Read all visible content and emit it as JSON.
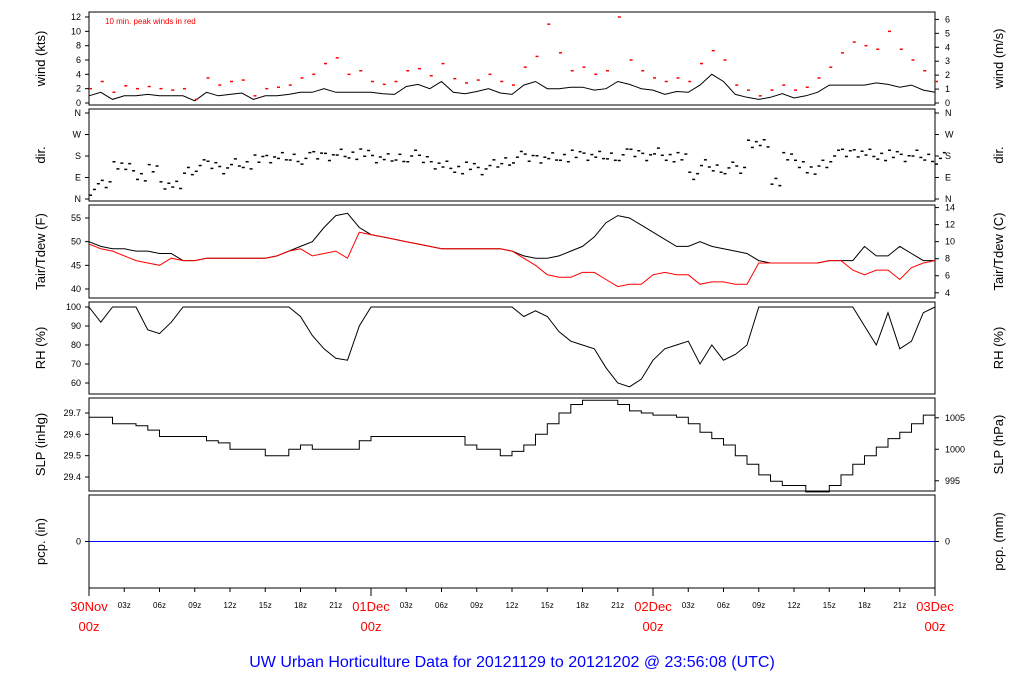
{
  "chart_data": {
    "type": "line",
    "title": "UW Urban Horticulture Data for 20121129  to  20121202 @ 23:56:08  (UTC)",
    "x_unit": "hours since 30Nov 00z",
    "x": [
      0,
      1,
      2,
      3,
      4,
      5,
      6,
      7,
      8,
      9,
      10,
      11,
      12,
      13,
      14,
      15,
      16,
      17,
      18,
      19,
      20,
      21,
      22,
      23,
      24,
      25,
      26,
      27,
      28,
      29,
      30,
      31,
      32,
      33,
      34,
      35,
      36,
      37,
      38,
      39,
      40,
      41,
      42,
      43,
      44,
      45,
      46,
      47,
      48,
      49,
      50,
      51,
      52,
      53,
      54,
      55,
      56,
      57,
      58,
      59,
      60,
      61,
      62,
      63,
      64,
      65,
      66,
      67,
      68,
      69,
      70,
      71,
      72
    ],
    "x_ticks_hours": [
      "03z",
      "06z",
      "09z",
      "12z",
      "15z",
      "18z",
      "21z"
    ],
    "x_day_labels": [
      {
        "day": "30Nov",
        "hour": "00z"
      },
      {
        "day": "01Dec",
        "hour": "00z"
      },
      {
        "day": "02Dec",
        "hour": "00z"
      },
      {
        "day": "03Dec",
        "hour": "00z"
      }
    ],
    "panels": [
      {
        "id": "wind",
        "ylabel": "wind (kts)",
        "ylabel_right": "wind (m/s)",
        "ylim": [
          0,
          12
        ],
        "yticks": [
          0,
          2,
          4,
          6,
          8,
          10,
          12
        ],
        "yticks_right": [
          0,
          1,
          2,
          3,
          4,
          5,
          6
        ],
        "annotation": "10 min. peak winds in red",
        "series": [
          {
            "name": "wind speed",
            "color": "#000000",
            "values": [
              1,
              1.5,
              0.5,
              1,
              1,
              1.2,
              1,
              1,
              1,
              0.3,
              1.5,
              1,
              1.2,
              1.4,
              0.5,
              1,
              1,
              1.2,
              1.5,
              1.5,
              2,
              1.5,
              1.5,
              1.5,
              1.5,
              1.3,
              1.2,
              2.3,
              2.6,
              2,
              3,
              1.5,
              1.3,
              1.6,
              2,
              1.4,
              1.2,
              2.5,
              3,
              2,
              2,
              2.2,
              2.2,
              1.8,
              2,
              3,
              2.6,
              2,
              1.8,
              1.2,
              1.6,
              1.5,
              2.5,
              4,
              3,
              1.2,
              0.8,
              0.5,
              0.8,
              1.3,
              0.7,
              1,
              1.5,
              2.5,
              2.5,
              2.5,
              2.5,
              2.8,
              2.6,
              2.2,
              2.5,
              1.8,
              1.5
            ]
          },
          {
            "name": "10 min. peak",
            "color": "#ff0000",
            "values": [
              2,
              3,
              1.5,
              2.4,
              2,
              2.3,
              2,
              1.8,
              2,
              0.5,
              3.5,
              2.5,
              3,
              3.2,
              1,
              2,
              2.2,
              2.5,
              3.5,
              4,
              5.5,
              6.3,
              4,
              4.5,
              3,
              2.6,
              3,
              4.5,
              4.8,
              3.8,
              5.5,
              3.4,
              2.8,
              3.2,
              4,
              3,
              2.5,
              5,
              6.5,
              11,
              7,
              4.5,
              5,
              4,
              4.5,
              12,
              6,
              4.5,
              3.5,
              3,
              3.5,
              3,
              5.5,
              7.3,
              6,
              2.5,
              1.8,
              1,
              1.8,
              2.5,
              1.8,
              2.2,
              3.5,
              5,
              7,
              8.5,
              8,
              7.5,
              10,
              7.5,
              6,
              4.5,
              3
            ]
          }
        ]
      },
      {
        "id": "dir",
        "ylabel": "dir.",
        "ylabel_right": "dir.",
        "ylim": [
          0,
          360
        ],
        "yticks": [
          "N",
          "E",
          "S",
          "W",
          "N"
        ],
        "series": [
          {
            "name": "wind direction (deg)",
            "color": "#000000",
            "values": [
              40,
              60,
              150,
              130,
              100,
              120,
              60,
              50,
              120,
              140,
              140,
              130,
              150,
              150,
              160,
              170,
              170,
              175,
              170,
              180,
              185,
              190,
              190,
              185,
              170,
              165,
              175,
              180,
              165,
              150,
              140,
              130,
              130,
              120,
              140,
              160,
              175,
              170,
              175,
              175,
              180,
              180,
              180,
              175,
              180,
              185,
              190,
              185,
              195,
              180,
              170,
              100,
              140,
              130,
              130,
              120,
              240,
              230,
              80,
              170,
              150,
              110,
              150,
              180,
              190,
              200,
              190,
              185,
              180,
              175,
              180,
              175,
              170
            ]
          }
        ]
      },
      {
        "id": "temp",
        "ylabel": "Tair/Tdew (F)",
        "ylabel_right": "Tair/Tdew (C)",
        "ylim": [
          40,
          55
        ],
        "yticks": [
          40,
          45,
          50,
          55
        ],
        "yticks_right": [
          4,
          6,
          8,
          10,
          12,
          14
        ],
        "series": [
          {
            "name": "Tair",
            "color": "#000000",
            "values": [
              50,
              49,
              48.5,
              48.5,
              48,
              48,
              47.5,
              47.5,
              46,
              46,
              46.5,
              46.5,
              46.5,
              46.5,
              46.5,
              46.5,
              47,
              48,
              49,
              50,
              53,
              55.5,
              56,
              53,
              51.5,
              51,
              50.5,
              50,
              49.5,
              49,
              48.5,
              48.5,
              48.5,
              48.5,
              48.5,
              48.5,
              48,
              47,
              46.5,
              46.5,
              47,
              48,
              49,
              51,
              54,
              55.5,
              55,
              53.5,
              52,
              50.5,
              49,
              49,
              50,
              49,
              48.5,
              48,
              47.5,
              46,
              45.5,
              45.5,
              45.5,
              45.5,
              45.5,
              46,
              46,
              46,
              49,
              47,
              47,
              49,
              47.5,
              46,
              46
            ]
          },
          {
            "name": "Tdew",
            "color": "#ff0000",
            "values": [
              49.5,
              48.5,
              48,
              47,
              46,
              45.5,
              45,
              46.5,
              46,
              46,
              46.5,
              46.5,
              46.5,
              46.5,
              46.5,
              46.5,
              47,
              48,
              48.5,
              47,
              47.5,
              48,
              46.5,
              52,
              51.5,
              51,
              50.5,
              50,
              49.5,
              49,
              48.5,
              48.5,
              48.5,
              48.5,
              48.5,
              48.5,
              48,
              46.5,
              45,
              43,
              42.5,
              42.5,
              43.5,
              43.5,
              42,
              40.5,
              41,
              41,
              43,
              43.5,
              43,
              43,
              41,
              41.5,
              41.5,
              41,
              41,
              45.5,
              45.5,
              45.5,
              45.5,
              45.5,
              45.5,
              46,
              46,
              44,
              43,
              44,
              44,
              42,
              44.5,
              45.5,
              46
            ]
          }
        ]
      },
      {
        "id": "rh",
        "ylabel": "RH (%)",
        "ylabel_right": "RH (%)",
        "ylim": [
          60,
          100
        ],
        "yticks": [
          60,
          70,
          80,
          90,
          100
        ],
        "series": [
          {
            "name": "RH",
            "color": "#000000",
            "values": [
              100,
              92,
              100,
              100,
              100,
              88,
              86,
              92,
              100,
              100,
              100,
              100,
              100,
              100,
              100,
              100,
              100,
              100,
              95,
              85,
              78,
              73,
              72,
              90,
              100,
              100,
              100,
              100,
              100,
              100,
              100,
              100,
              100,
              100,
              100,
              100,
              100,
              95,
              98,
              95,
              87,
              82,
              80,
              78,
              68,
              60,
              58,
              62,
              72,
              78,
              80,
              82,
              70,
              80,
              72,
              75,
              80,
              100,
              100,
              100,
              100,
              100,
              100,
              100,
              100,
              100,
              90,
              80,
              97,
              78,
              82,
              97,
              100
            ]
          }
        ]
      },
      {
        "id": "slp",
        "ylabel": "SLP (inHg)",
        "ylabel_right": "SLP (hPa)",
        "ylim": [
          29.4,
          29.7
        ],
        "yticks": [
          29.4,
          29.5,
          29.6,
          29.7
        ],
        "yticks_right": [
          995,
          1000,
          1005
        ],
        "series": [
          {
            "name": "SLP",
            "color": "#000000",
            "values": [
              29.68,
              29.68,
              29.65,
              29.65,
              29.64,
              29.62,
              29.59,
              29.59,
              29.59,
              29.59,
              29.57,
              29.56,
              29.53,
              29.53,
              29.53,
              29.5,
              29.5,
              29.53,
              29.55,
              29.53,
              29.53,
              29.53,
              29.53,
              29.57,
              29.59,
              29.59,
              29.59,
              29.59,
              29.59,
              29.59,
              29.59,
              29.59,
              29.55,
              29.53,
              29.53,
              29.5,
              29.52,
              29.55,
              29.6,
              29.65,
              29.7,
              29.74,
              29.76,
              29.76,
              29.76,
              29.74,
              29.71,
              29.7,
              29.69,
              29.69,
              29.68,
              29.65,
              29.61,
              29.58,
              29.55,
              29.5,
              29.46,
              29.41,
              29.38,
              29.36,
              29.36,
              29.33,
              29.33,
              29.36,
              29.41,
              29.46,
              29.5,
              29.54,
              29.58,
              29.61,
              29.65,
              29.69,
              29.74
            ]
          }
        ]
      },
      {
        "id": "pcp",
        "ylabel": "pcp. (in)",
        "ylabel_right": "pcp. (mm)",
        "ylim": [
          -1,
          1
        ],
        "yticks": [
          0
        ],
        "yticks_right": [
          0
        ],
        "series": [
          {
            "name": "precipitation",
            "color": "#0000ff",
            "values": [
              0,
              0
            ]
          }
        ]
      }
    ]
  },
  "colors": {
    "red": "#ff0000",
    "blue": "#0000ff",
    "black": "#000000"
  }
}
